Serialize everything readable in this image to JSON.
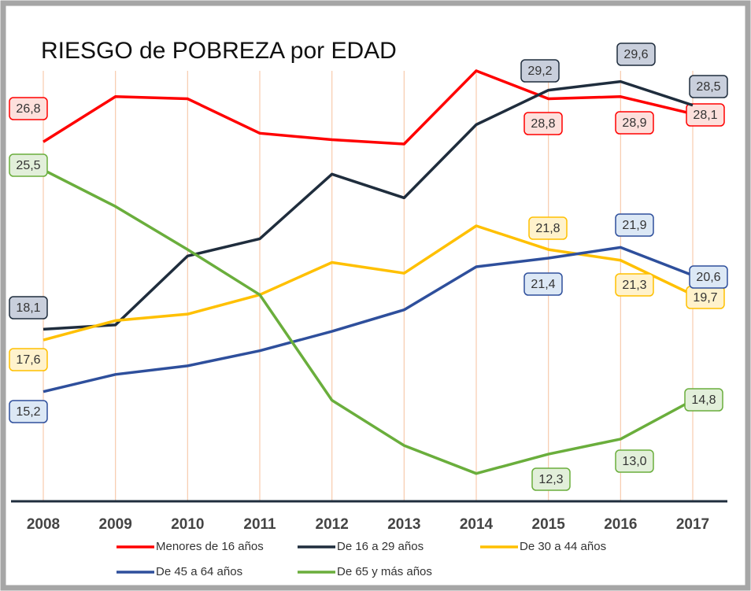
{
  "chart_data": {
    "type": "line",
    "title": "RIESGO de POBREZA por EDAD",
    "categories": [
      "2008",
      "2009",
      "2010",
      "2011",
      "2012",
      "2013",
      "2014",
      "2015",
      "2016",
      "2017"
    ],
    "ylim": [
      10,
      30.5
    ],
    "grid": true,
    "series": [
      {
        "name": "Menores de 16 años",
        "color": "#ff0000",
        "values": [
          26.8,
          28.9,
          28.8,
          27.2,
          26.9,
          26.7,
          30.1,
          28.8,
          28.9,
          28.1
        ],
        "value_labels": [
          "26,8",
          null,
          null,
          null,
          null,
          null,
          null,
          "28,8",
          "28,9",
          "28,1"
        ]
      },
      {
        "name": "De 16 a 29 años",
        "color": "#1f2d3d",
        "values": [
          18.1,
          18.3,
          21.5,
          22.3,
          25.3,
          24.2,
          27.6,
          29.2,
          29.6,
          28.5
        ],
        "value_labels": [
          "18,1",
          null,
          null,
          null,
          null,
          null,
          null,
          "29,2",
          "29,6",
          "28,5"
        ]
      },
      {
        "name": "De 30 a 44 años",
        "color": "#ffc000",
        "values": [
          17.6,
          18.5,
          18.8,
          19.7,
          21.2,
          20.7,
          22.9,
          21.8,
          21.3,
          19.7
        ],
        "value_labels": [
          "17,6",
          null,
          null,
          null,
          null,
          null,
          null,
          "21,8",
          "21,3",
          "19,7"
        ]
      },
      {
        "name": "De 45 a 64 años",
        "color": "#2e4f9c",
        "values": [
          15.2,
          16.0,
          16.4,
          17.1,
          18.0,
          19.0,
          21.0,
          21.4,
          21.9,
          20.6
        ],
        "value_labels": [
          "15,2",
          null,
          null,
          null,
          null,
          null,
          null,
          "21,4",
          "21,9",
          "20,6"
        ]
      },
      {
        "name": "De 65 y más años",
        "color": "#6aae3c",
        "values": [
          25.5,
          23.8,
          21.8,
          19.7,
          14.8,
          12.7,
          11.4,
          12.3,
          13.0,
          14.8
        ],
        "value_labels": [
          "25,5",
          null,
          null,
          null,
          null,
          null,
          null,
          "12,3",
          "13,0",
          "14,8"
        ]
      }
    ]
  }
}
